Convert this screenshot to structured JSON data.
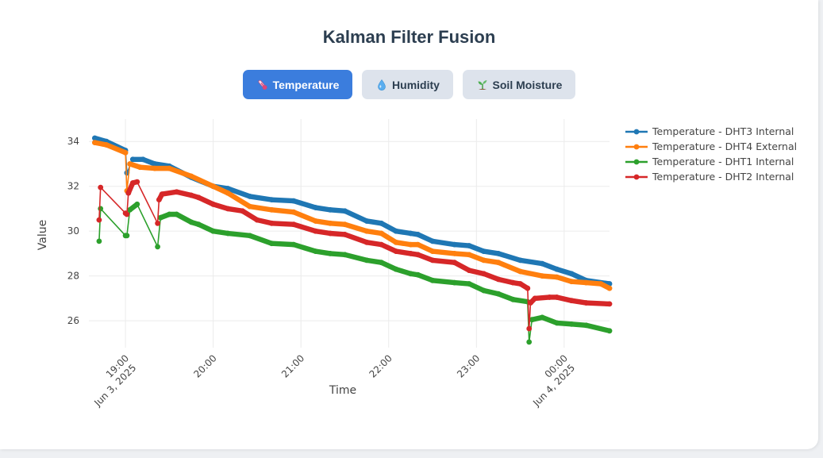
{
  "page": {
    "title": "Kalman Filter Fusion"
  },
  "tabs": [
    {
      "label": "Temperature",
      "icon": "thermometer-icon",
      "active": true
    },
    {
      "label": "Humidity",
      "icon": "droplet-icon",
      "active": false
    },
    {
      "label": "Soil Moisture",
      "icon": "seedling-icon",
      "active": false
    }
  ],
  "colors": {
    "accent": "#3b7ddd",
    "tab_inactive": "#dde3ec",
    "title": "#2c3e50"
  },
  "chart_data": {
    "type": "line",
    "xlabel": "Time",
    "ylabel": "Value",
    "x_range": [
      "2025-06-03 18:35",
      "2025-06-04 00:31"
    ],
    "y_range": [
      24.8,
      35.0
    ],
    "grid": true,
    "legend_position": "top-right",
    "y_ticks": [
      34,
      32,
      30,
      28,
      26
    ],
    "x_ticks": [
      {
        "t": "2025-06-03 19:00",
        "label": "19:00",
        "sub": "Jun 3, 2025"
      },
      {
        "t": "2025-06-03 20:00",
        "label": "20:00",
        "sub": ""
      },
      {
        "t": "2025-06-03 21:00",
        "label": "21:00",
        "sub": ""
      },
      {
        "t": "2025-06-03 22:00",
        "label": "22:00",
        "sub": ""
      },
      {
        "t": "2025-06-03 23:00",
        "label": "23:00",
        "sub": ""
      },
      {
        "t": "2025-06-04 00:00",
        "label": "00:00",
        "sub": "Jun 4, 2025"
      }
    ],
    "series": [
      {
        "name": "Temperature - DHT3 Internal",
        "color": "#1f77b4",
        "points": [
          [
            "2025-06-03 18:39",
            34.15
          ],
          [
            "2025-06-03 18:47",
            34.0
          ],
          [
            "2025-06-03 19:00",
            33.6
          ],
          [
            "2025-06-03 19:01",
            32.6
          ],
          [
            "2025-06-03 19:05",
            33.2
          ],
          [
            "2025-06-03 19:12",
            33.2
          ],
          [
            "2025-06-03 19:20",
            33.0
          ],
          [
            "2025-06-03 19:30",
            32.9
          ],
          [
            "2025-06-03 19:45",
            32.4
          ],
          [
            "2025-06-03 20:00",
            32.0
          ],
          [
            "2025-06-03 20:10",
            31.9
          ],
          [
            "2025-06-03 20:25",
            31.55
          ],
          [
            "2025-06-03 20:40",
            31.4
          ],
          [
            "2025-06-03 20:55",
            31.35
          ],
          [
            "2025-06-03 21:10",
            31.05
          ],
          [
            "2025-06-03 21:20",
            30.95
          ],
          [
            "2025-06-03 21:30",
            30.9
          ],
          [
            "2025-06-03 21:45",
            30.45
          ],
          [
            "2025-06-03 21:55",
            30.35
          ],
          [
            "2025-06-03 22:05",
            30.0
          ],
          [
            "2025-06-03 22:15",
            29.9
          ],
          [
            "2025-06-03 22:20",
            29.85
          ],
          [
            "2025-06-03 22:30",
            29.55
          ],
          [
            "2025-06-03 22:45",
            29.4
          ],
          [
            "2025-06-03 22:55",
            29.35
          ],
          [
            "2025-06-03 23:05",
            29.1
          ],
          [
            "2025-06-03 23:15",
            29.0
          ],
          [
            "2025-06-03 23:30",
            28.7
          ],
          [
            "2025-06-03 23:45",
            28.55
          ],
          [
            "2025-06-03 23:55",
            28.3
          ],
          [
            "2025-06-04 00:05",
            28.1
          ],
          [
            "2025-06-04 00:15",
            27.8
          ],
          [
            "2025-06-04 00:31",
            27.65
          ]
        ]
      },
      {
        "name": "Temperature - DHT4 External",
        "color": "#ff7f0e",
        "points": [
          [
            "2025-06-03 18:39",
            33.95
          ],
          [
            "2025-06-03 18:47",
            33.85
          ],
          [
            "2025-06-03 19:00",
            33.5
          ],
          [
            "2025-06-03 19:01",
            31.8
          ],
          [
            "2025-06-03 19:03",
            33.0
          ],
          [
            "2025-06-03 19:10",
            32.85
          ],
          [
            "2025-06-03 19:20",
            32.8
          ],
          [
            "2025-06-03 19:30",
            32.8
          ],
          [
            "2025-06-03 19:45",
            32.45
          ],
          [
            "2025-06-03 20:00",
            32.0
          ],
          [
            "2025-06-03 20:10",
            31.7
          ],
          [
            "2025-06-03 20:25",
            31.1
          ],
          [
            "2025-06-03 20:40",
            30.95
          ],
          [
            "2025-06-03 20:55",
            30.85
          ],
          [
            "2025-06-03 21:10",
            30.45
          ],
          [
            "2025-06-03 21:20",
            30.35
          ],
          [
            "2025-06-03 21:30",
            30.3
          ],
          [
            "2025-06-03 21:45",
            30.0
          ],
          [
            "2025-06-03 21:55",
            29.9
          ],
          [
            "2025-06-03 22:05",
            29.5
          ],
          [
            "2025-06-03 22:15",
            29.4
          ],
          [
            "2025-06-03 22:20",
            29.4
          ],
          [
            "2025-06-03 22:30",
            29.1
          ],
          [
            "2025-06-03 22:45",
            29.0
          ],
          [
            "2025-06-03 22:55",
            28.95
          ],
          [
            "2025-06-03 23:05",
            28.7
          ],
          [
            "2025-06-03 23:15",
            28.6
          ],
          [
            "2025-06-03 23:30",
            28.2
          ],
          [
            "2025-06-03 23:45",
            28.0
          ],
          [
            "2025-06-03 23:55",
            27.95
          ],
          [
            "2025-06-04 00:05",
            27.75
          ],
          [
            "2025-06-04 00:15",
            27.7
          ],
          [
            "2025-06-04 00:25",
            27.65
          ],
          [
            "2025-06-04 00:31",
            27.45
          ]
        ]
      },
      {
        "name": "Temperature - DHT1 Internal",
        "color": "#2ca02c",
        "points": [
          [
            "2025-06-03 18:42",
            29.55
          ],
          [
            "2025-06-03 18:43",
            31.0
          ],
          [
            "2025-06-03 19:00",
            29.8
          ],
          [
            "2025-06-03 19:01",
            29.8
          ],
          [
            "2025-06-03 19:03",
            30.95
          ],
          [
            "2025-06-03 19:08",
            31.2
          ],
          [
            "2025-06-03 19:22",
            29.3
          ],
          [
            "2025-06-03 19:24",
            30.6
          ],
          [
            "2025-06-03 19:30",
            30.75
          ],
          [
            "2025-06-03 19:35",
            30.75
          ],
          [
            "2025-06-03 19:45",
            30.4
          ],
          [
            "2025-06-03 19:50",
            30.3
          ],
          [
            "2025-06-03 20:00",
            30.0
          ],
          [
            "2025-06-03 20:10",
            29.9
          ],
          [
            "2025-06-03 20:25",
            29.8
          ],
          [
            "2025-06-03 20:40",
            29.45
          ],
          [
            "2025-06-03 20:55",
            29.4
          ],
          [
            "2025-06-03 21:10",
            29.1
          ],
          [
            "2025-06-03 21:20",
            29.0
          ],
          [
            "2025-06-03 21:30",
            28.95
          ],
          [
            "2025-06-03 21:45",
            28.7
          ],
          [
            "2025-06-03 21:55",
            28.6
          ],
          [
            "2025-06-03 22:05",
            28.3
          ],
          [
            "2025-06-03 22:15",
            28.1
          ],
          [
            "2025-06-03 22:20",
            28.05
          ],
          [
            "2025-06-03 22:30",
            27.8
          ],
          [
            "2025-06-03 22:45",
            27.7
          ],
          [
            "2025-06-03 22:55",
            27.65
          ],
          [
            "2025-06-03 23:05",
            27.35
          ],
          [
            "2025-06-03 23:15",
            27.2
          ],
          [
            "2025-06-03 23:25",
            26.95
          ],
          [
            "2025-06-03 23:35",
            26.85
          ],
          [
            "2025-06-03 23:36",
            25.05
          ],
          [
            "2025-06-03 23:38",
            26.05
          ],
          [
            "2025-06-03 23:45",
            26.15
          ],
          [
            "2025-06-03 23:55",
            25.9
          ],
          [
            "2025-06-04 00:05",
            25.85
          ],
          [
            "2025-06-04 00:15",
            25.8
          ],
          [
            "2025-06-04 00:31",
            25.55
          ]
        ]
      },
      {
        "name": "Temperature - DHT2 Internal",
        "color": "#d62728",
        "points": [
          [
            "2025-06-03 18:42",
            30.5
          ],
          [
            "2025-06-03 18:43",
            31.95
          ],
          [
            "2025-06-03 19:00",
            30.8
          ],
          [
            "2025-06-03 19:01",
            30.75
          ],
          [
            "2025-06-03 19:02",
            31.7
          ],
          [
            "2025-06-03 19:05",
            32.15
          ],
          [
            "2025-06-03 19:08",
            32.2
          ],
          [
            "2025-06-03 19:22",
            30.35
          ],
          [
            "2025-06-03 19:23",
            31.4
          ],
          [
            "2025-06-03 19:25",
            31.65
          ],
          [
            "2025-06-03 19:35",
            31.75
          ],
          [
            "2025-06-03 19:45",
            31.6
          ],
          [
            "2025-06-03 19:50",
            31.5
          ],
          [
            "2025-06-03 20:00",
            31.2
          ],
          [
            "2025-06-03 20:10",
            31.0
          ],
          [
            "2025-06-03 20:20",
            30.9
          ],
          [
            "2025-06-03 20:30",
            30.5
          ],
          [
            "2025-06-03 20:40",
            30.35
          ],
          [
            "2025-06-03 20:55",
            30.3
          ],
          [
            "2025-06-03 21:10",
            30.0
          ],
          [
            "2025-06-03 21:20",
            29.9
          ],
          [
            "2025-06-03 21:30",
            29.85
          ],
          [
            "2025-06-03 21:45",
            29.5
          ],
          [
            "2025-06-03 21:55",
            29.4
          ],
          [
            "2025-06-03 22:05",
            29.1
          ],
          [
            "2025-06-03 22:15",
            29.0
          ],
          [
            "2025-06-03 22:20",
            28.95
          ],
          [
            "2025-06-03 22:30",
            28.7
          ],
          [
            "2025-06-03 22:45",
            28.6
          ],
          [
            "2025-06-03 22:55",
            28.25
          ],
          [
            "2025-06-03 23:05",
            28.1
          ],
          [
            "2025-06-03 23:15",
            27.85
          ],
          [
            "2025-06-03 23:25",
            27.7
          ],
          [
            "2025-06-03 23:30",
            27.65
          ],
          [
            "2025-06-03 23:35",
            27.45
          ],
          [
            "2025-06-03 23:36",
            25.65
          ],
          [
            "2025-06-03 23:37",
            26.8
          ],
          [
            "2025-06-03 23:40",
            27.0
          ],
          [
            "2025-06-03 23:50",
            27.05
          ],
          [
            "2025-06-03 23:55",
            27.05
          ],
          [
            "2025-06-04 00:05",
            26.9
          ],
          [
            "2025-06-04 00:15",
            26.8
          ],
          [
            "2025-06-04 00:31",
            26.75
          ]
        ]
      }
    ]
  }
}
